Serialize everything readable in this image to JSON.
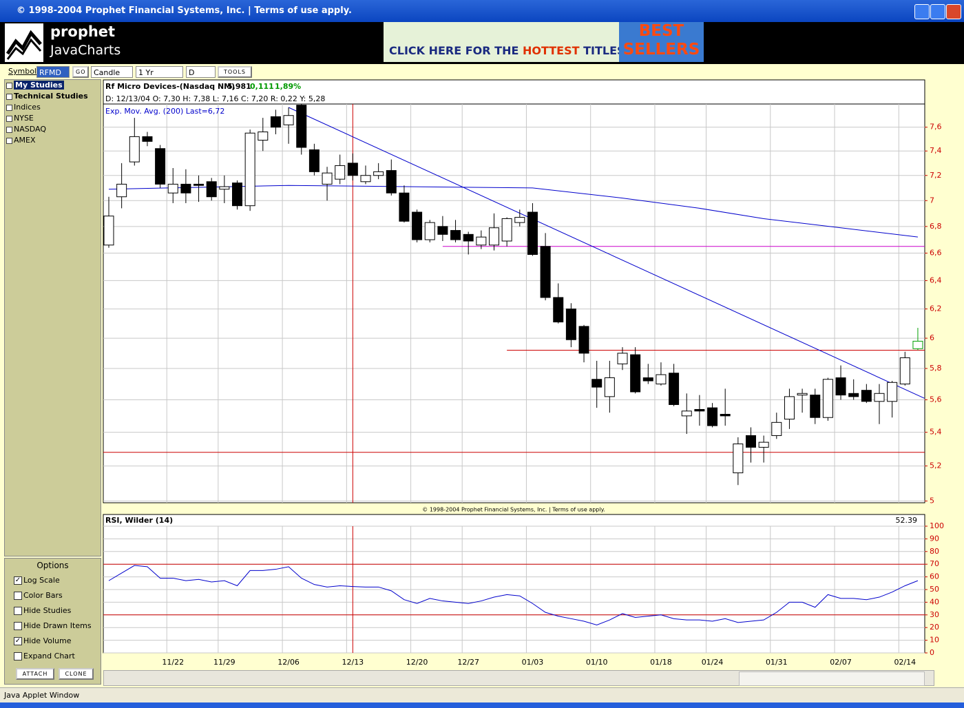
{
  "window": {
    "title": "© 1998-2004 Prophet Financial Systems, Inc.  |  Terms of use apply.",
    "status": "Java Applet Window"
  },
  "header": {
    "brand": "prophet",
    "product": "JavaCharts",
    "ad": {
      "text1": "CLICK HERE FOR THE",
      "highlight": "HOTTEST",
      "text2": "TITLES!",
      "badge1": "BEST",
      "badge2": "SELLERS"
    }
  },
  "toolbar": {
    "symbol_label": "Symbol:",
    "symbol": "RFMD",
    "go": "GO",
    "chart_type": "Candle",
    "period": "1 Yr",
    "interval": "D",
    "tools": "TOOLS"
  },
  "tree": [
    "My Studies",
    "Technical Studies",
    "Indices",
    "NYSE",
    "NASDAQ",
    "AMEX"
  ],
  "options": {
    "title": "Options",
    "items": [
      {
        "label": "Log Scale",
        "checked": true
      },
      {
        "label": "Color Bars",
        "checked": false
      },
      {
        "label": "Hide Studies",
        "checked": false
      },
      {
        "label": "Hide Drawn Items",
        "checked": false
      },
      {
        "label": "Hide Volume",
        "checked": true
      },
      {
        "label": "Expand Chart",
        "checked": false
      }
    ],
    "attach": "ATTACH",
    "clone": "CLONE"
  },
  "copyright": "© 1998-2004 Prophet Financial Systems, Inc. | Terms of use apply.",
  "chart_data": [
    {
      "type": "candlestick",
      "title": "Rf Micro Devices-(Nasdaq NM)",
      "last": "5,981",
      "change": "0,111",
      "change_pct": "1,89%",
      "readout": "D: 12/13/04  O: 7,30  H: 7,38  L: 7,16  C: 7,20  R: 0,22  Y: 5,28",
      "categories": [
        null,
        null,
        null,
        null,
        null,
        "11/22",
        null,
        null,
        null,
        "11/29",
        null,
        null,
        null,
        null,
        "12/06",
        null,
        null,
        null,
        null,
        "12/13",
        null,
        null,
        null,
        null,
        "12/20",
        null,
        null,
        null,
        "12/27",
        null,
        null,
        null,
        null,
        "01/03",
        null,
        null,
        null,
        null,
        "01/10",
        null,
        null,
        null,
        null,
        "01/18",
        null,
        null,
        null,
        "01/24",
        null,
        null,
        null,
        null,
        "01/31",
        null,
        null,
        null,
        null,
        "02/07",
        null,
        null,
        null,
        null,
        "02/14",
        null
      ],
      "open": [
        6.66,
        7.03,
        7.31,
        7.52,
        7.42,
        7.06,
        7.13,
        7.13,
        7.15,
        7.09,
        7.14,
        6.96,
        7.49,
        7.69,
        7.62,
        7.79,
        7.41,
        7.13,
        7.17,
        7.3,
        7.15,
        7.2,
        7.24,
        7.06,
        6.91,
        6.7,
        6.8,
        6.77,
        6.74,
        6.66,
        6.66,
        6.69,
        6.83,
        6.91,
        6.65,
        6.28,
        6.2,
        6.08,
        5.73,
        5.62,
        5.83,
        5.89,
        5.74,
        5.7,
        5.77,
        5.5,
        5.54,
        5.55,
        5.51,
        5.16,
        5.38,
        5.31,
        5.38,
        5.48,
        5.63,
        5.63,
        5.49,
        5.74,
        5.64,
        5.66,
        5.59,
        5.59,
        5.7,
        5.93
      ],
      "high": [
        7.03,
        7.3,
        7.68,
        7.56,
        7.45,
        7.26,
        7.25,
        7.2,
        7.18,
        7.2,
        7.16,
        7.58,
        7.68,
        7.75,
        7.77,
        7.8,
        7.46,
        7.27,
        7.37,
        7.38,
        7.28,
        7.3,
        7.33,
        7.12,
        6.93,
        6.85,
        6.88,
        6.85,
        6.76,
        6.77,
        6.9,
        6.87,
        6.93,
        6.98,
        6.75,
        6.38,
        6.24,
        6.09,
        5.85,
        5.85,
        5.94,
        5.94,
        5.83,
        5.84,
        5.83,
        5.64,
        5.63,
        5.58,
        5.67,
        5.37,
        5.43,
        5.38,
        5.52,
        5.67,
        5.67,
        5.67,
        5.74,
        5.82,
        5.73,
        5.7,
        5.7,
        5.72,
        5.91,
        6.07
      ],
      "low": [
        6.64,
        6.94,
        7.28,
        7.44,
        7.1,
        6.98,
        6.98,
        6.99,
        7.0,
        6.98,
        6.93,
        6.92,
        7.4,
        7.54,
        7.46,
        7.37,
        7.2,
        7.0,
        7.13,
        7.16,
        7.13,
        7.17,
        7.04,
        6.83,
        6.68,
        6.68,
        6.69,
        6.68,
        6.59,
        6.63,
        6.62,
        6.65,
        6.8,
        6.58,
        6.26,
        6.1,
        5.94,
        5.84,
        5.55,
        5.52,
        5.79,
        5.64,
        5.7,
        5.69,
        5.56,
        5.39,
        5.44,
        5.43,
        5.44,
        5.09,
        5.22,
        5.22,
        5.36,
        5.42,
        5.52,
        5.45,
        5.47,
        5.6,
        5.6,
        5.58,
        5.45,
        5.49,
        5.69,
        5.92
      ],
      "close": [
        6.88,
        7.13,
        7.52,
        7.48,
        7.13,
        7.13,
        7.06,
        7.12,
        7.03,
        7.11,
        6.96,
        7.55,
        7.56,
        7.6,
        7.7,
        7.43,
        7.23,
        7.22,
        7.28,
        7.2,
        7.2,
        7.23,
        7.06,
        6.84,
        6.7,
        6.83,
        6.74,
        6.7,
        6.69,
        6.72,
        6.79,
        6.86,
        6.87,
        6.59,
        6.28,
        6.11,
        5.99,
        5.9,
        5.68,
        5.74,
        5.9,
        5.65,
        5.72,
        5.76,
        5.57,
        5.53,
        5.53,
        5.44,
        5.5,
        5.33,
        5.31,
        5.34,
        5.46,
        5.62,
        5.64,
        5.49,
        5.73,
        5.63,
        5.62,
        5.59,
        5.64,
        5.71,
        5.87,
        5.98
      ],
      "up_color": "#ffffff",
      "down_color": "#000000",
      "current_color": "#00a000",
      "log_scale": true,
      "grid": true,
      "ylim": [
        4.99,
        7.8
      ],
      "yticks": [
        5,
        {
          "value": 5.2,
          "label": "5,2"
        },
        {
          "value": 5.4,
          "label": "5,4"
        },
        {
          "value": 5.6,
          "label": "5,6"
        },
        {
          "value": 5.8,
          "label": "5,8"
        },
        6,
        {
          "value": 6.2,
          "label": "6,2"
        },
        {
          "value": 6.4,
          "label": "6,4"
        },
        {
          "value": 6.6,
          "label": "6,6"
        },
        {
          "value": 6.8,
          "label": "6,8"
        },
        7,
        {
          "value": 7.2,
          "label": "7,2"
        },
        {
          "value": 7.4,
          "label": "7,4"
        },
        {
          "value": 7.6,
          "label": "7,6"
        }
      ],
      "overlay": {
        "name": "Exp. Mov. Avg. (200) Last=6,72",
        "color": "#0000cc",
        "x": [
          0,
          14,
          33,
          40,
          46,
          51,
          57,
          63
        ],
        "values": [
          7.09,
          7.12,
          7.1,
          7.02,
          6.94,
          6.86,
          6.79,
          6.72
        ]
      },
      "trendline": {
        "color": "#0000cc",
        "x": [
          14,
          63.5
        ],
        "values": [
          7.77,
          5.61
        ]
      },
      "hlines": [
        {
          "value": 6.65,
          "from": 26,
          "color": "#cc00cc"
        },
        {
          "value": 5.92,
          "from": 31,
          "color": "#cc0000"
        }
      ],
      "crosshair": {
        "x": 19,
        "value": 5.28,
        "color": "#cc0000"
      }
    },
    {
      "type": "line",
      "title": "RSI, Wilder (14)",
      "color": "#0000cc",
      "grid": true,
      "values": [
        57,
        63,
        69,
        68,
        59,
        59,
        57,
        58,
        56,
        57,
        53,
        65,
        65,
        66,
        68,
        59,
        54,
        52,
        53,
        52.39,
        52,
        52,
        49,
        42,
        39,
        43,
        41,
        40,
        39,
        41,
        44,
        46,
        45,
        39,
        32,
        29,
        27,
        25,
        22,
        26,
        31,
        28,
        29,
        30,
        27,
        26,
        26,
        25,
        27,
        24,
        25,
        26,
        32,
        40,
        40,
        36,
        46,
        43,
        43,
        42,
        44,
        48,
        53,
        57
      ],
      "ylim": [
        0,
        100
      ],
      "yticks": [
        0,
        10,
        20,
        30,
        40,
        50,
        60,
        70,
        80,
        90,
        100
      ],
      "reference_lines": [
        70,
        30
      ],
      "reference_color": "#cc0000"
    }
  ]
}
